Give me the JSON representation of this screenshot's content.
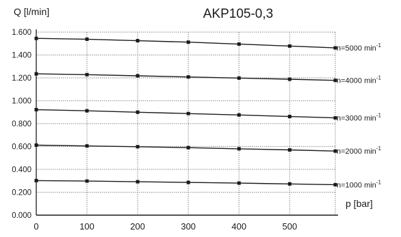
{
  "chart_data": {
    "type": "line",
    "title": "AKP105-0,3",
    "ylabel": "Q [l/min]",
    "xlabel": "p [bar]",
    "x": [
      0,
      100,
      200,
      300,
      400,
      500,
      590
    ],
    "xlim": [
      0,
      590
    ],
    "ylim": [
      0,
      1.6
    ],
    "x_ticks": [
      0,
      100,
      200,
      300,
      400,
      500
    ],
    "x_tick_labels": [
      "0",
      "100",
      "200",
      "300",
      "400",
      "500"
    ],
    "y_ticks": [
      0,
      0.2,
      0.4,
      0.6,
      0.8,
      1.0,
      1.2,
      1.4,
      1.6
    ],
    "y_tick_labels": [
      "0.000",
      "0.200",
      "0.400",
      "0.600",
      "0.800",
      "1.000",
      "1.200",
      "1.400",
      "1.600"
    ],
    "grid": true,
    "series": [
      {
        "name": "n=5000 min⁻¹",
        "values": [
          1.545,
          1.538,
          1.525,
          1.512,
          1.495,
          1.478,
          1.462
        ]
      },
      {
        "name": "n=4000 min⁻¹",
        "values": [
          1.235,
          1.228,
          1.218,
          1.208,
          1.198,
          1.188,
          1.178
        ]
      },
      {
        "name": "n=3000 min⁻¹",
        "values": [
          0.922,
          0.912,
          0.9,
          0.888,
          0.876,
          0.862,
          0.85
        ]
      },
      {
        "name": "n=2000 min⁻¹",
        "values": [
          0.612,
          0.605,
          0.598,
          0.59,
          0.58,
          0.57,
          0.56
        ]
      },
      {
        "name": "n=1000 min⁻¹",
        "values": [
          0.302,
          0.298,
          0.292,
          0.286,
          0.28,
          0.273,
          0.266
        ]
      }
    ],
    "colors": {
      "line": "#1a1a1a",
      "grid": "#9a9a9a",
      "axis": "#1a1a1a"
    }
  }
}
